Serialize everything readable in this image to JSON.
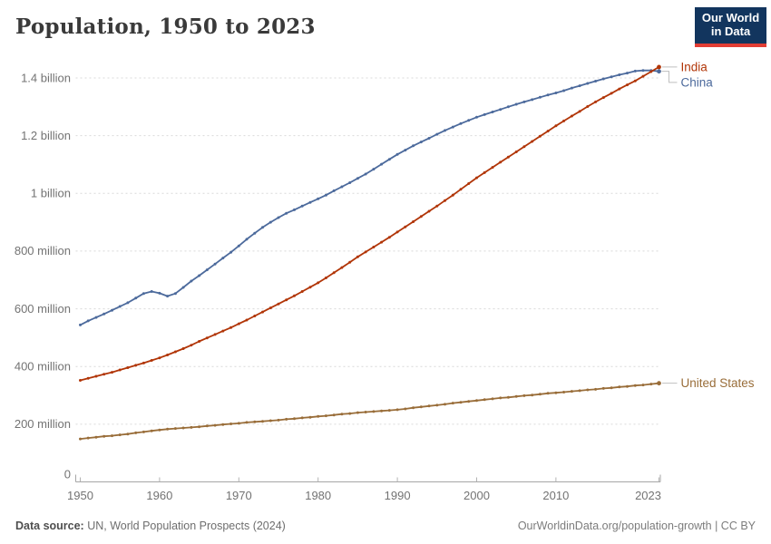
{
  "header": {
    "title": "Population, 1950 to 2023",
    "logo": {
      "line1": "Our World",
      "line2": "in Data",
      "bg": "#12355e",
      "stripe": "#e23d34"
    }
  },
  "footer": {
    "source_label": "Data source:",
    "source_text": " UN, World Population Prospects (2024)",
    "right_text": "OurWorldinData.org/population-growth | CC BY"
  },
  "chart_data": {
    "type": "line",
    "title": "Population, 1950 to 2023",
    "unit": "people",
    "values_unit": "millions",
    "grid": "horizontal-dashed",
    "legend_position": "right-end-labels",
    "ylim_millions": [
      0,
      1450
    ],
    "x_ticks": [
      "1950",
      "1960",
      "1970",
      "1980",
      "1990",
      "2000",
      "2010",
      "2023"
    ],
    "x_tick_years": [
      1950,
      1960,
      1970,
      1980,
      1990,
      2000,
      2010,
      2023
    ],
    "y_ticks": [
      {
        "value": 0,
        "label": "0"
      },
      {
        "value": 200,
        "label": "200 million"
      },
      {
        "value": 400,
        "label": "400 million"
      },
      {
        "value": 600,
        "label": "600 million"
      },
      {
        "value": 800,
        "label": "800 million"
      },
      {
        "value": 1000,
        "label": "1 billion"
      },
      {
        "value": 1200,
        "label": "1.2 billion"
      },
      {
        "value": 1400,
        "label": "1.4 billion"
      }
    ],
    "x": [
      1950,
      1951,
      1952,
      1953,
      1954,
      1955,
      1956,
      1957,
      1958,
      1959,
      1960,
      1961,
      1962,
      1963,
      1964,
      1965,
      1966,
      1967,
      1968,
      1969,
      1970,
      1971,
      1972,
      1973,
      1974,
      1975,
      1976,
      1977,
      1978,
      1979,
      1980,
      1981,
      1982,
      1983,
      1984,
      1985,
      1986,
      1987,
      1988,
      1989,
      1990,
      1991,
      1992,
      1993,
      1994,
      1995,
      1996,
      1997,
      1998,
      1999,
      2000,
      2001,
      2002,
      2003,
      2004,
      2005,
      2006,
      2007,
      2008,
      2009,
      2010,
      2011,
      2012,
      2013,
      2014,
      2015,
      2016,
      2017,
      2018,
      2019,
      2020,
      2021,
      2022,
      2023
    ],
    "series": [
      {
        "name": "China",
        "color": "#4c6a9c",
        "values": [
          544,
          558,
          570,
          582,
          595,
          608,
          621,
          637,
          653,
          660,
          654,
          644,
          653,
          674,
          696,
          715,
          735,
          755,
          776,
          796,
          818,
          841,
          862,
          882,
          900,
          916,
          931,
          943,
          956,
          969,
          981,
          994,
          1009,
          1023,
          1037,
          1052,
          1067,
          1084,
          1101,
          1118,
          1135,
          1150,
          1165,
          1178,
          1191,
          1205,
          1218,
          1230,
          1242,
          1253,
          1264,
          1273,
          1282,
          1291,
          1300,
          1309,
          1317,
          1325,
          1333,
          1341,
          1348,
          1356,
          1365,
          1373,
          1381,
          1389,
          1397,
          1404,
          1411,
          1417,
          1424,
          1426,
          1426,
          1423
        ]
      },
      {
        "name": "India",
        "color": "#b13507",
        "values": [
          352,
          359,
          366,
          373,
          380,
          388,
          396,
          404,
          412,
          421,
          430,
          440,
          451,
          462,
          474,
          487,
          499,
          511,
          523,
          535,
          548,
          561,
          575,
          589,
          603,
          617,
          631,
          645,
          660,
          675,
          690,
          707,
          725,
          743,
          761,
          780,
          797,
          814,
          831,
          848,
          866,
          884,
          902,
          920,
          938,
          956,
          975,
          994,
          1014,
          1034,
          1054,
          1072,
          1090,
          1108,
          1126,
          1144,
          1162,
          1180,
          1198,
          1216,
          1234,
          1251,
          1268,
          1284,
          1301,
          1317,
          1332,
          1347,
          1362,
          1376,
          1390,
          1406,
          1422,
          1438
        ]
      },
      {
        "name": "United States",
        "color": "#996d39",
        "values": [
          149,
          152,
          155,
          158,
          160,
          163,
          166,
          170,
          173,
          177,
          180,
          183,
          185,
          187,
          189,
          191,
          194,
          196,
          199,
          201,
          203,
          206,
          208,
          210,
          212,
          214,
          217,
          219,
          222,
          224,
          227,
          229,
          232,
          235,
          237,
          240,
          242,
          244,
          246,
          248,
          250,
          253,
          257,
          260,
          263,
          266,
          269,
          273,
          276,
          279,
          282,
          285,
          288,
          291,
          293,
          296,
          299,
          301,
          304,
          307,
          309,
          311,
          314,
          316,
          319,
          321,
          324,
          326,
          329,
          331,
          334,
          336,
          339,
          342
        ]
      }
    ]
  }
}
